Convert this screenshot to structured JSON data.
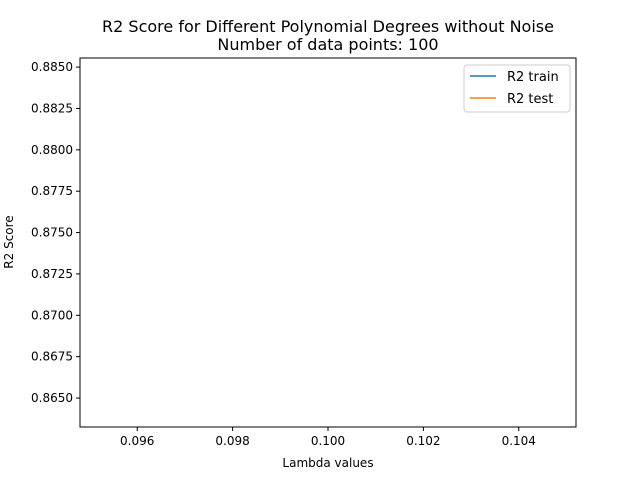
{
  "chart_data": {
    "type": "line",
    "title": "R2 Score for Different Polynomial Degrees without Noise",
    "subtitle": "Number of data points: 100",
    "xlabel": "Lambda values",
    "ylabel": "R2 Score",
    "xlim": [
      0.0948,
      0.1052
    ],
    "ylim": [
      0.86325,
      0.88555
    ],
    "x_ticks": [
      "0.096",
      "0.098",
      "0.100",
      "0.102",
      "0.104"
    ],
    "x_tick_values": [
      0.096,
      0.098,
      0.1,
      0.102,
      0.104
    ],
    "y_ticks": [
      "0.8650",
      "0.8675",
      "0.8700",
      "0.8725",
      "0.8750",
      "0.8775",
      "0.8800",
      "0.8825",
      "0.8850"
    ],
    "y_tick_values": [
      0.865,
      0.8675,
      0.87,
      0.8725,
      0.875,
      0.8775,
      0.88,
      0.8825,
      0.885
    ],
    "grid": false,
    "legend_position": "top-right",
    "series": [
      {
        "name": "R2 train",
        "color": "#1f77b4",
        "x": [],
        "y": []
      },
      {
        "name": "R2 test",
        "color": "#ff7f0e",
        "x": [],
        "y": []
      }
    ]
  }
}
